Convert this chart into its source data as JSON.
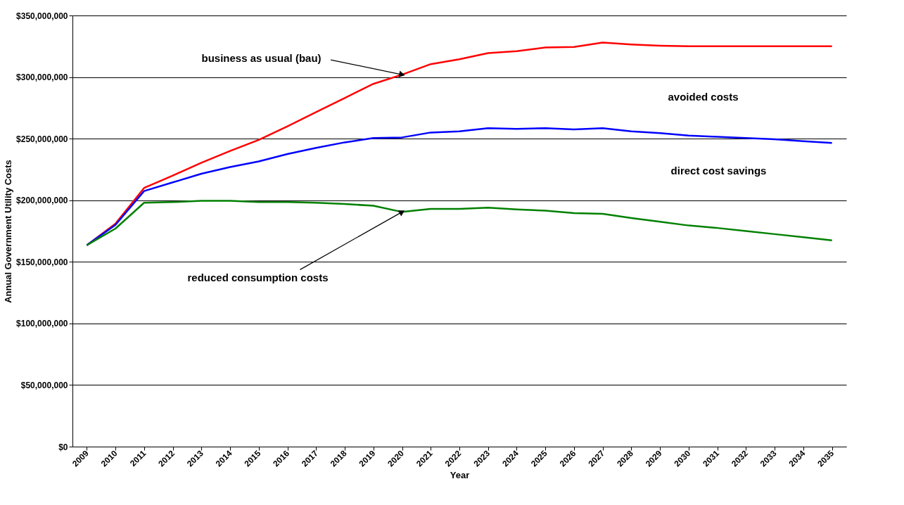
{
  "chart_data": {
    "type": "line",
    "xlabel": "Year",
    "ylabel": "Annual Government Utility Costs",
    "categories": [
      "2009",
      "2010",
      "2011",
      "2012",
      "2013",
      "2014",
      "2015",
      "2016",
      "2017",
      "2018",
      "2019",
      "2020",
      "2021",
      "2022",
      "2023",
      "2024",
      "2025",
      "2026",
      "2027",
      "2028",
      "2029",
      "2030",
      "2031",
      "2032",
      "2033",
      "2034",
      "2035"
    ],
    "series": [
      {
        "color": "#ff0000",
        "values": [
          163500000,
          181000000,
          210000000,
          220000000,
          230500000,
          240000000,
          249000000,
          260000000,
          271500000,
          283000000,
          294500000,
          302000000,
          310500000,
          314500000,
          319500000,
          321000000,
          324000000,
          324500000,
          328000000,
          326500000,
          325500000,
          325000000,
          325000000,
          325000000,
          325000000,
          325000000,
          325000000
        ]
      },
      {
        "color": "#0000ff",
        "values": [
          163500000,
          180000000,
          207500000,
          214500000,
          221500000,
          227000000,
          231500000,
          237500000,
          242500000,
          247000000,
          250500000,
          251000000,
          255000000,
          256000000,
          258500000,
          258000000,
          258500000,
          257500000,
          258500000,
          256000000,
          254500000,
          252500000,
          251500000,
          250500000,
          249500000,
          248000000,
          246500000
        ]
      },
      {
        "color": "#008000",
        "values": [
          163500000,
          177000000,
          198000000,
          198500000,
          199500000,
          199500000,
          198500000,
          198500000,
          198000000,
          197000000,
          195500000,
          190500000,
          193000000,
          193000000,
          194000000,
          192500000,
          191500000,
          189500000,
          189000000,
          185500000,
          182500000,
          179500000,
          177500000,
          175000000,
          172500000,
          170000000,
          167500000
        ]
      }
    ],
    "ylim": [
      0,
      350000000
    ],
    "yticks": [
      {
        "value": 0,
        "label": "$0"
      },
      {
        "value": 50000000,
        "label": "$50,000,000"
      },
      {
        "value": 100000000,
        "label": "$100,000,000"
      },
      {
        "value": 150000000,
        "label": "$150,000,000"
      },
      {
        "value": 200000000,
        "label": "$200,000,000"
      },
      {
        "value": 250000000,
        "label": "$250,000,000"
      },
      {
        "value": 300000000,
        "label": "$300,000,000"
      },
      {
        "value": 350000000,
        "label": "$350,000,000"
      }
    ],
    "grid": "y",
    "marker": "none",
    "line_style": "solid",
    "annotations": [
      {
        "text": "business as usual (bau)",
        "x": "2020",
        "y": 302000000
      },
      {
        "text": "reduced consumption costs",
        "x": "2020",
        "y": 190500000
      },
      "avoided costs",
      "direct cost savings"
    ]
  }
}
